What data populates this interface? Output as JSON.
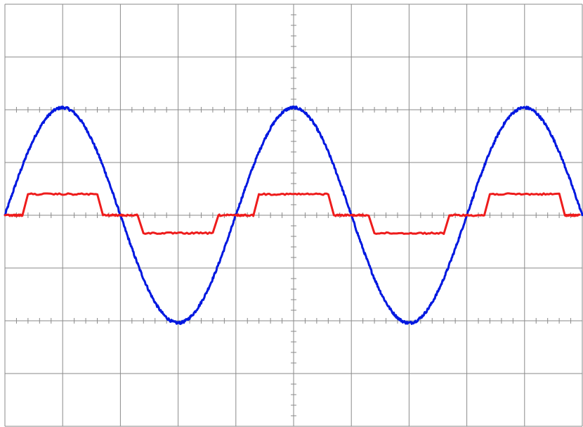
{
  "chart_data": {
    "type": "line",
    "title": "",
    "xlabel": "",
    "ylabel": "",
    "xlim": [
      0,
      10
    ],
    "ylim": [
      -4,
      4
    ],
    "grid": true,
    "legend": "none",
    "grid_divisions": {
      "x": 10,
      "y": 8
    },
    "minor_ticks_per_division": 5,
    "series": [
      {
        "color": "#0018e0",
        "waveform": "sine",
        "amplitude": 2.04,
        "period": 4.0,
        "phase_zero_crossing_up": 0.0,
        "peak_x": [
          1.0,
          5.0,
          9.0
        ],
        "trough_x": [
          3.0,
          7.0
        ]
      },
      {
        "color": "#ee1c1c",
        "waveform": "three-level-step",
        "levels": [
          0,
          0.4,
          0,
          -0.34,
          0
        ],
        "steps": [
          {
            "x0": 0.0,
            "x1": 0.35,
            "y": 0
          },
          {
            "x0": 0.35,
            "x1": 1.65,
            "y": 0.4
          },
          {
            "x0": 1.65,
            "x1": 2.35,
            "y": 0
          },
          {
            "x0": 2.35,
            "x1": 3.65,
            "y": -0.34
          },
          {
            "x0": 3.65,
            "x1": 4.35,
            "y": 0
          },
          {
            "x0": 4.35,
            "x1": 5.65,
            "y": 0.4
          },
          {
            "x0": 5.65,
            "x1": 6.35,
            "y": 0
          },
          {
            "x0": 6.35,
            "x1": 7.65,
            "y": -0.34
          },
          {
            "x0": 7.65,
            "x1": 8.35,
            "y": 0
          },
          {
            "x0": 8.35,
            "x1": 9.65,
            "y": 0.4
          },
          {
            "x0": 9.65,
            "x1": 10.0,
            "y": 0
          }
        ]
      }
    ]
  }
}
